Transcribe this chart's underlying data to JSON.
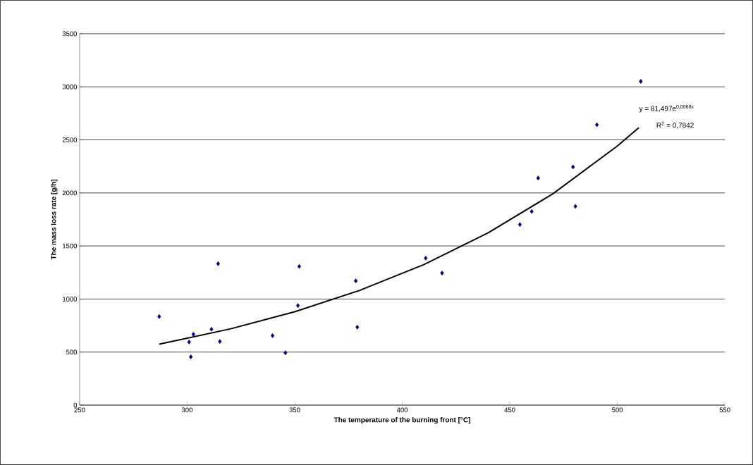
{
  "chart_data": {
    "type": "scatter",
    "xlabel": "The temperature of the burning front [°C]",
    "ylabel": "The mass loss rate [g/h]",
    "series": [
      {
        "color": "#000080",
        "marker": "diamond",
        "x": [
          287,
          300.9,
          301.7,
          302.9,
          311.3,
          314.4,
          315.2,
          339.7,
          345.7,
          351.5,
          352.1,
          378.4,
          379.1,
          410.9,
          418.5,
          454.7,
          460.2,
          463.2,
          479.4,
          480.5,
          490.5,
          510.9
        ],
        "values": [
          835,
          595,
          455,
          667,
          715,
          1333,
          600,
          655,
          493,
          938,
          1307,
          1171,
          735,
          1385,
          1245,
          1702,
          1825,
          2140,
          2245,
          1873,
          2642,
          3051
        ]
      },
      {
        "type": "line",
        "color": "#000000",
        "marker": "none",
        "x": [
          287,
          320,
          350,
          380,
          410,
          440,
          470,
          500,
          510
        ],
        "values": [
          574,
          718,
          880,
          1080,
          1324,
          1624,
          1991,
          2442,
          2614
        ]
      }
    ],
    "xlim": [
      250,
      550
    ],
    "xticks": [
      250,
      300,
      350,
      400,
      450,
      500,
      550
    ],
    "ylim": [
      0,
      3500
    ],
    "yticks": [
      0,
      500,
      1000,
      1500,
      2000,
      2500,
      3000,
      3500
    ],
    "grid": "y",
    "annotations": [
      "y = 81,497e$^{0,0068x}$",
      "R$^{2}$ = 0,7842"
    ]
  }
}
